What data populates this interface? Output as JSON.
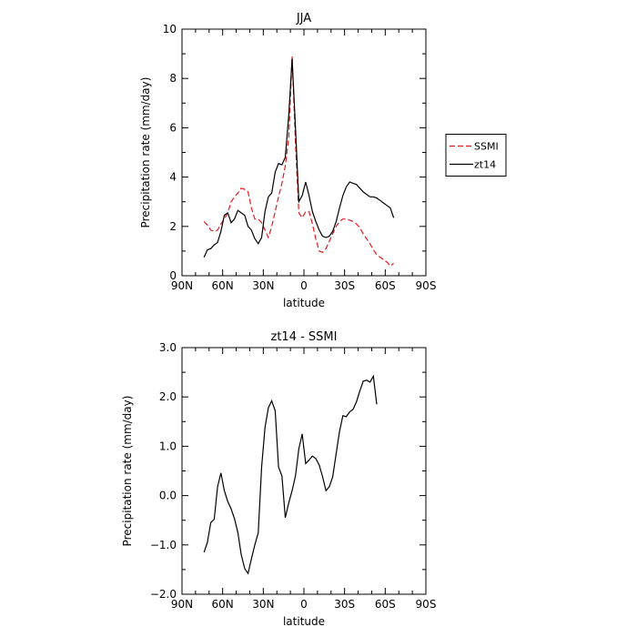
{
  "chart_data": [
    {
      "type": "line",
      "title": "JJA",
      "xlabel": "latitude",
      "ylabel": "Precipitation rate (mm/day)",
      "xlim": [
        90,
        -90
      ],
      "ylim": [
        0,
        10
      ],
      "x_ticks": [
        90,
        60,
        30,
        0,
        -30,
        -60,
        -90
      ],
      "x_tick_labels": [
        "90N",
        "60N",
        "30N",
        "0",
        "30S",
        "60S",
        "90S"
      ],
      "y_ticks": [
        0,
        2,
        4,
        6,
        8,
        10
      ],
      "y_tick_labels": [
        "0",
        "2",
        "4",
        "6",
        "8",
        "10"
      ],
      "legend_position": "right",
      "series": [
        {
          "name": "SSMI",
          "color": "#e41a1c",
          "dash": "dashed",
          "points": [
            [
              73.75,
              2.2
            ],
            [
              71.25,
              2.05
            ],
            [
              68.75,
              1.85
            ],
            [
              66.25,
              1.8
            ],
            [
              63.75,
              1.85
            ],
            [
              61.25,
              2.1
            ],
            [
              58.75,
              2.3
            ],
            [
              56.25,
              2.55
            ],
            [
              53.75,
              3.0
            ],
            [
              51.25,
              3.2
            ],
            [
              48.75,
              3.35
            ],
            [
              46.25,
              3.55
            ],
            [
              43.75,
              3.5
            ],
            [
              41.25,
              3.4
            ],
            [
              38.75,
              2.75
            ],
            [
              36.25,
              2.3
            ],
            [
              33.75,
              2.3
            ],
            [
              31.25,
              2.15
            ],
            [
              28.75,
              1.85
            ],
            [
              26.25,
              1.55
            ],
            [
              23.75,
              2.0
            ],
            [
              21.25,
              2.6
            ],
            [
              18.75,
              3.2
            ],
            [
              16.25,
              3.75
            ],
            [
              13.75,
              4.45
            ],
            [
              11.25,
              5.6
            ],
            [
              8.75,
              8.9
            ],
            [
              6.25,
              5.4
            ],
            [
              3.75,
              2.55
            ],
            [
              1.25,
              2.35
            ],
            [
              -1.25,
              2.6
            ],
            [
              -3.75,
              2.6
            ],
            [
              -6.25,
              2.1
            ],
            [
              -8.75,
              1.5
            ],
            [
              -11.25,
              1.0
            ],
            [
              -13.75,
              0.95
            ],
            [
              -16.25,
              1.1
            ],
            [
              -18.75,
              1.4
            ],
            [
              -21.25,
              1.7
            ],
            [
              -23.75,
              2.0
            ],
            [
              -26.25,
              2.2
            ],
            [
              -28.75,
              2.3
            ],
            [
              -31.25,
              2.3
            ],
            [
              -33.75,
              2.25
            ],
            [
              -36.25,
              2.2
            ],
            [
              -38.75,
              2.1
            ],
            [
              -41.25,
              1.95
            ],
            [
              -43.75,
              1.7
            ],
            [
              -46.25,
              1.5
            ],
            [
              -48.75,
              1.3
            ],
            [
              -51.25,
              1.05
            ],
            [
              -53.75,
              0.85
            ],
            [
              -56.25,
              0.75
            ],
            [
              -58.75,
              0.65
            ],
            [
              -61.25,
              0.55
            ],
            [
              -63.75,
              0.4
            ],
            [
              -66.25,
              0.5
            ]
          ]
        },
        {
          "name": "zt14",
          "color": "#000000",
          "dash": "solid",
          "points": [
            [
              73.75,
              0.75
            ],
            [
              71.25,
              1.05
            ],
            [
              68.75,
              1.1
            ],
            [
              66.25,
              1.25
            ],
            [
              63.75,
              1.35
            ],
            [
              61.25,
              1.8
            ],
            [
              58.75,
              2.45
            ],
            [
              56.25,
              2.55
            ],
            [
              53.75,
              2.15
            ],
            [
              51.25,
              2.3
            ],
            [
              48.75,
              2.65
            ],
            [
              46.25,
              2.55
            ],
            [
              43.75,
              2.45
            ],
            [
              41.25,
              2.0
            ],
            [
              38.75,
              1.85
            ],
            [
              36.25,
              1.5
            ],
            [
              33.75,
              1.3
            ],
            [
              31.25,
              1.55
            ],
            [
              28.75,
              2.6
            ],
            [
              26.25,
              3.2
            ],
            [
              23.75,
              3.35
            ],
            [
              21.25,
              4.2
            ],
            [
              18.75,
              4.55
            ],
            [
              16.25,
              4.5
            ],
            [
              13.75,
              4.8
            ],
            [
              11.25,
              6.5
            ],
            [
              8.75,
              8.8
            ],
            [
              6.25,
              6.0
            ],
            [
              3.75,
              3.0
            ],
            [
              1.25,
              3.25
            ],
            [
              -1.25,
              3.8
            ],
            [
              -3.75,
              3.25
            ],
            [
              -6.25,
              2.6
            ],
            [
              -8.75,
              2.2
            ],
            [
              -11.25,
              1.85
            ],
            [
              -13.75,
              1.6
            ],
            [
              -16.25,
              1.55
            ],
            [
              -18.75,
              1.6
            ],
            [
              -21.25,
              1.8
            ],
            [
              -23.75,
              2.2
            ],
            [
              -26.25,
              2.75
            ],
            [
              -28.75,
              3.25
            ],
            [
              -31.25,
              3.6
            ],
            [
              -33.75,
              3.8
            ],
            [
              -36.25,
              3.75
            ],
            [
              -38.75,
              3.7
            ],
            [
              -41.25,
              3.55
            ],
            [
              -43.75,
              3.4
            ],
            [
              -46.25,
              3.3
            ],
            [
              -48.75,
              3.2
            ],
            [
              -51.25,
              3.2
            ],
            [
              -53.75,
              3.15
            ],
            [
              -56.25,
              3.05
            ],
            [
              -58.75,
              2.95
            ],
            [
              -61.25,
              2.85
            ],
            [
              -63.75,
              2.75
            ],
            [
              -66.25,
              2.35
            ]
          ]
        }
      ]
    },
    {
      "type": "line",
      "title": "zt14 - SSMI",
      "xlabel": "latitude",
      "ylabel": "Precipitation rate (mm/day)",
      "xlim": [
        90,
        -90
      ],
      "ylim": [
        -2.0,
        3.0
      ],
      "x_ticks": [
        90,
        60,
        30,
        0,
        -30,
        -60,
        -90
      ],
      "x_tick_labels": [
        "90N",
        "60N",
        "30N",
        "0",
        "30S",
        "60S",
        "90S"
      ],
      "y_ticks": [
        -2,
        -1,
        0,
        1,
        2,
        3
      ],
      "y_tick_labels": [
        "−2.0",
        "−1.0",
        "0.0",
        "1.0",
        "2.0",
        "3.0"
      ],
      "series": [
        {
          "color": "#000000",
          "dash": "solid",
          "points": [
            [
              73.75,
              -1.15
            ],
            [
              71.25,
              -0.95
            ],
            [
              68.75,
              -0.55
            ],
            [
              66.25,
              -0.48
            ],
            [
              63.75,
              0.18
            ],
            [
              61.25,
              0.46
            ],
            [
              58.75,
              0.1
            ],
            [
              56.25,
              -0.12
            ],
            [
              53.75,
              -0.27
            ],
            [
              51.25,
              -0.47
            ],
            [
              48.75,
              -0.75
            ],
            [
              46.25,
              -1.2
            ],
            [
              43.75,
              -1.48
            ],
            [
              41.25,
              -1.58
            ],
            [
              38.75,
              -1.28
            ],
            [
              36.25,
              -1.0
            ],
            [
              33.75,
              -0.75
            ],
            [
              31.25,
              0.58
            ],
            [
              28.75,
              1.38
            ],
            [
              26.25,
              1.78
            ],
            [
              23.75,
              1.92
            ],
            [
              21.25,
              1.72
            ],
            [
              18.75,
              0.58
            ],
            [
              16.25,
              0.4
            ],
            [
              13.75,
              -0.45
            ],
            [
              11.25,
              -0.15
            ],
            [
              8.75,
              0.1
            ],
            [
              6.25,
              0.4
            ],
            [
              3.75,
              0.95
            ],
            [
              1.25,
              1.25
            ],
            [
              -1.25,
              0.65
            ],
            [
              -3.75,
              0.72
            ],
            [
              -6.25,
              0.8
            ],
            [
              -8.75,
              0.75
            ],
            [
              -11.25,
              0.62
            ],
            [
              -13.75,
              0.38
            ],
            [
              -16.25,
              0.1
            ],
            [
              -18.75,
              0.18
            ],
            [
              -21.25,
              0.38
            ],
            [
              -23.75,
              0.85
            ],
            [
              -26.25,
              1.3
            ],
            [
              -28.75,
              1.62
            ],
            [
              -31.25,
              1.6
            ],
            [
              -33.75,
              1.7
            ],
            [
              -36.25,
              1.75
            ],
            [
              -38.75,
              1.9
            ],
            [
              -41.25,
              2.12
            ],
            [
              -43.75,
              2.32
            ],
            [
              -46.25,
              2.34
            ],
            [
              -48.75,
              2.3
            ],
            [
              -51.25,
              2.42
            ],
            [
              -53.75,
              1.85
            ]
          ]
        }
      ]
    }
  ]
}
